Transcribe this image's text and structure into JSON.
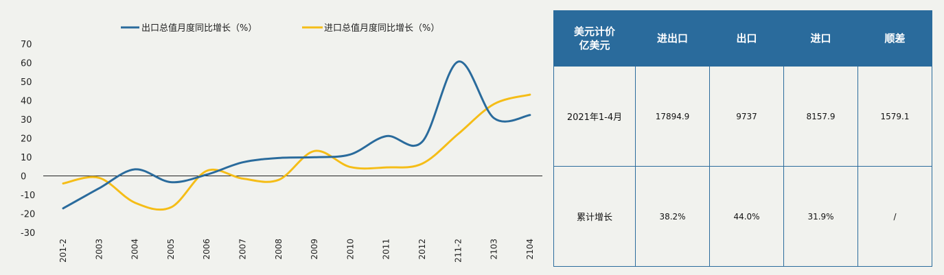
{
  "chart_data": {
    "type": "line",
    "title": "",
    "xlabel": "",
    "ylabel": "",
    "ylim": [
      -30,
      70
    ],
    "yticks": [
      70,
      60,
      50,
      40,
      30,
      20,
      10,
      0,
      -10,
      -20,
      -30
    ],
    "grid": false,
    "legend_position": "top",
    "categories": [
      "201-2",
      "2003",
      "2004",
      "2005",
      "2006",
      "2007",
      "2008",
      "2009",
      "2010",
      "2011",
      "2012",
      "211-2",
      "2103",
      "2104"
    ],
    "series": [
      {
        "name": "出口总值月度同比增长（%）",
        "color": "#2a6b9c",
        "values": [
          -17.2,
          -6.6,
          3.5,
          -3.3,
          0.7,
          7.2,
          9.5,
          9.9,
          11.4,
          21.1,
          18.1,
          60.6,
          30.6,
          32.3
        ]
      },
      {
        "name": "进口总值月度同比增长（%）",
        "color": "#f5bd17",
        "values": [
          -4.0,
          -1.0,
          -14.2,
          -16.7,
          2.7,
          -1.4,
          -2.1,
          13.2,
          4.7,
          4.5,
          6.5,
          22.2,
          38.1,
          43.1
        ]
      }
    ]
  },
  "table": {
    "headers": [
      "美元计价\n亿美元",
      "进出口",
      "出口",
      "进口",
      "顺差"
    ],
    "rows": [
      [
        "2021年1-4月",
        "17894.9",
        "9737",
        "8157.9",
        "1579.1"
      ],
      [
        "累计增长",
        "38.2%",
        "44.0%",
        "31.9%",
        "/"
      ]
    ]
  }
}
